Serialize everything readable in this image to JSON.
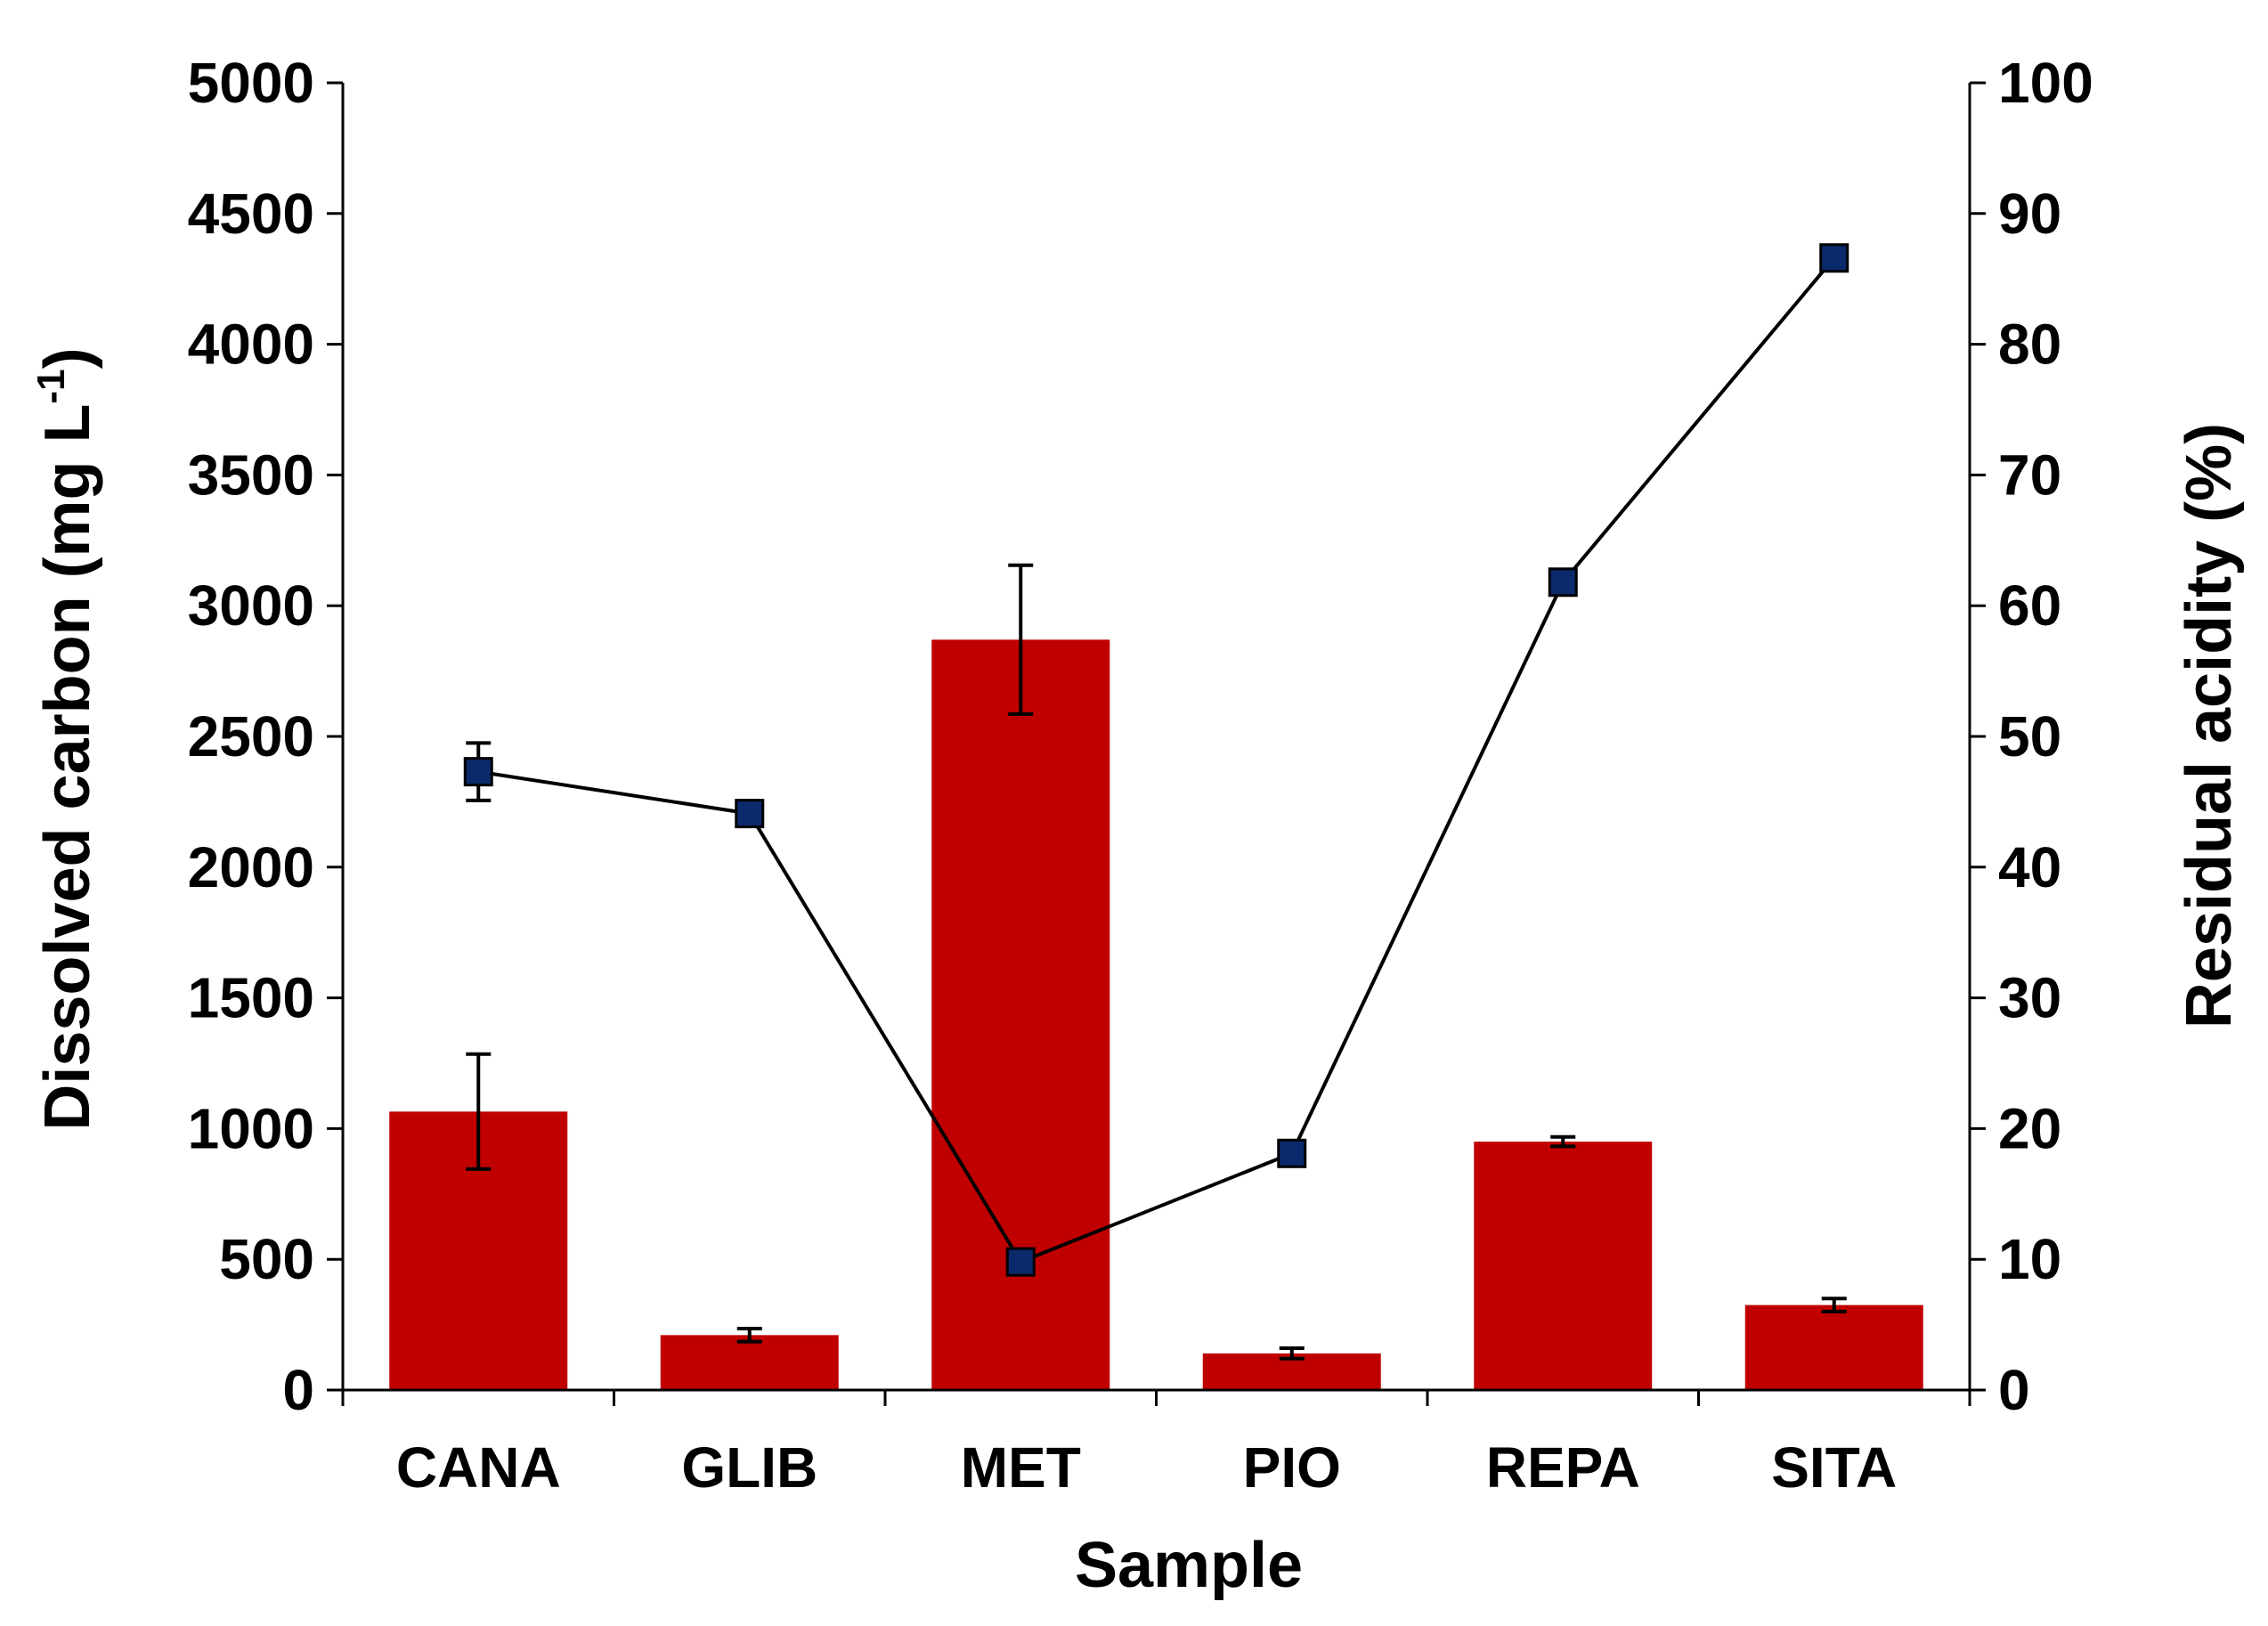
{
  "chart_data": {
    "type": "bar+line",
    "categories": [
      "CANA",
      "GLIB",
      "MET",
      "PIO",
      "REPA",
      "SITA"
    ],
    "xlabel": "Sample",
    "ylabel_left": "Dissolved carbon (mg L",
    "ylabel_left_sup": "-1",
    "ylabel_left_close": ")",
    "ylabel_right": "Residual acidity (%)",
    "ylim_left": [
      0,
      5000
    ],
    "yticks_left": [
      "0",
      "500",
      "1000",
      "1500",
      "2000",
      "2500",
      "3000",
      "3500",
      "4000",
      "4500",
      "5000"
    ],
    "ylim_right": [
      0,
      100
    ],
    "yticks_right": [
      "0",
      "10",
      "20",
      "30",
      "40",
      "50",
      "60",
      "70",
      "80",
      "90",
      "100"
    ],
    "series": [
      {
        "name": "Dissolved carbon",
        "kind": "bar",
        "axis": "left",
        "color": "#c00000",
        "values": [
          1065,
          210,
          2870,
          140,
          950,
          325
        ],
        "errors": [
          220,
          25,
          285,
          20,
          18,
          25
        ]
      },
      {
        "name": "Residual acidity",
        "kind": "line",
        "axis": "right",
        "color": "#000000",
        "marker_color": "#0b2a6b",
        "values": [
          47.3,
          44.1,
          9.8,
          18.1,
          61.8,
          86.6
        ],
        "errors": [
          2.2,
          0.4,
          0.3,
          0.5,
          0.3,
          0.3
        ]
      }
    ],
    "grid": false,
    "legend": "none"
  }
}
